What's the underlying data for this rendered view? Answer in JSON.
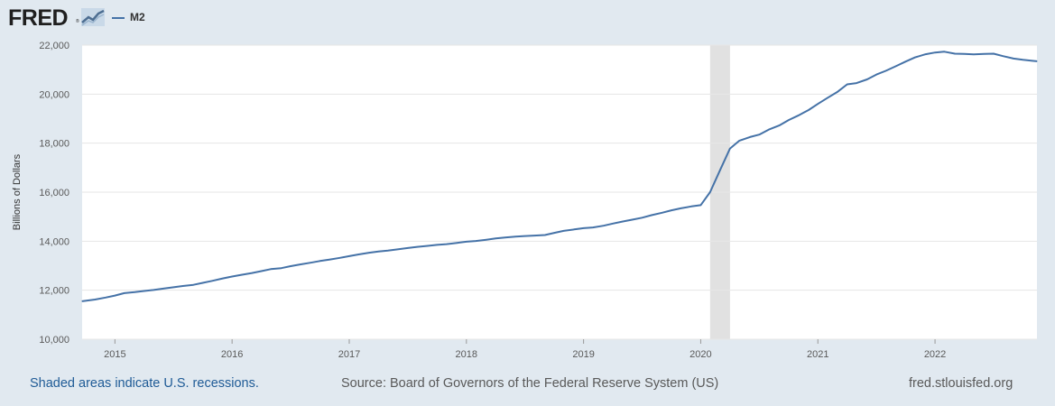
{
  "header": {
    "logo_text": "FRED",
    "logo_mark": "®",
    "legend": {
      "label": "M2",
      "color": "#4572a7"
    }
  },
  "footer": {
    "recession_note": "Shaded areas indicate U.S. recessions.",
    "source": "Source: Board of Governors of the Federal Reserve System (US)",
    "site": "fred.stlouisfed.org"
  },
  "colors": {
    "background": "#e1e9f0",
    "plot_background": "#ffffff",
    "series": "#4572a7",
    "recession_band": "#e1e1e1",
    "grid": "#e6e6e6"
  },
  "chart_data": {
    "type": "line",
    "title": "",
    "xlabel": "",
    "ylabel": "Billions of Dollars",
    "xlim": [
      2014.72,
      2022.87
    ],
    "ylim": [
      10000,
      22000
    ],
    "grid": true,
    "x_ticks": [
      2015,
      2016,
      2017,
      2018,
      2019,
      2020,
      2021,
      2022
    ],
    "x_tick_labels": [
      "2015",
      "2016",
      "2017",
      "2018",
      "2019",
      "2020",
      "2021",
      "2022"
    ],
    "y_ticks": [
      10000,
      12000,
      14000,
      16000,
      18000,
      20000,
      22000
    ],
    "y_tick_labels": [
      "10,000",
      "12,000",
      "14,000",
      "16,000",
      "18,000",
      "20,000",
      "22,000"
    ],
    "recessions": [
      {
        "start": 2020.08,
        "end": 2020.25
      }
    ],
    "series": [
      {
        "name": "M2",
        "color": "#4572a7",
        "x": [
          2014.72,
          2014.83,
          2014.92,
          2015.0,
          2015.08,
          2015.17,
          2015.25,
          2015.33,
          2015.42,
          2015.5,
          2015.58,
          2015.67,
          2015.75,
          2015.83,
          2015.92,
          2016.0,
          2016.08,
          2016.17,
          2016.25,
          2016.33,
          2016.42,
          2016.5,
          2016.58,
          2016.67,
          2016.75,
          2016.83,
          2016.92,
          2017.0,
          2017.08,
          2017.17,
          2017.25,
          2017.33,
          2017.42,
          2017.5,
          2017.58,
          2017.67,
          2017.75,
          2017.83,
          2017.92,
          2018.0,
          2018.08,
          2018.17,
          2018.25,
          2018.33,
          2018.42,
          2018.5,
          2018.58,
          2018.67,
          2018.75,
          2018.83,
          2018.92,
          2019.0,
          2019.08,
          2019.17,
          2019.25,
          2019.33,
          2019.42,
          2019.5,
          2019.58,
          2019.67,
          2019.75,
          2019.83,
          2019.92,
          2020.0,
          2020.08,
          2020.17,
          2020.25,
          2020.33,
          2020.42,
          2020.5,
          2020.58,
          2020.67,
          2020.75,
          2020.83,
          2020.92,
          2021.0,
          2021.08,
          2021.17,
          2021.25,
          2021.33,
          2021.42,
          2021.5,
          2021.58,
          2021.67,
          2021.75,
          2021.83,
          2021.92,
          2022.0,
          2022.08,
          2022.17,
          2022.25,
          2022.33,
          2022.42,
          2022.5,
          2022.58,
          2022.67,
          2022.75,
          2022.83,
          2022.87
        ],
        "values": [
          11550,
          11620,
          11700,
          11780,
          11880,
          11920,
          11970,
          12010,
          12070,
          12120,
          12170,
          12220,
          12300,
          12380,
          12480,
          12560,
          12630,
          12700,
          12780,
          12860,
          12900,
          12980,
          13050,
          13120,
          13190,
          13250,
          13320,
          13390,
          13460,
          13530,
          13580,
          13620,
          13670,
          13720,
          13770,
          13810,
          13850,
          13880,
          13930,
          13980,
          14010,
          14060,
          14110,
          14150,
          14190,
          14210,
          14230,
          14250,
          14340,
          14420,
          14480,
          14530,
          14560,
          14630,
          14720,
          14800,
          14880,
          14960,
          15060,
          15160,
          15260,
          15340,
          15420,
          15470,
          16000,
          16950,
          17780,
          18100,
          18250,
          18350,
          18550,
          18720,
          18940,
          19120,
          19350,
          19600,
          19840,
          20100,
          20400,
          20450,
          20600,
          20800,
          20950,
          21150,
          21330,
          21500,
          21630,
          21700,
          21730,
          21650,
          21640,
          21620,
          21640,
          21650,
          21550,
          21450,
          21400,
          21360,
          21340
        ]
      }
    ]
  }
}
